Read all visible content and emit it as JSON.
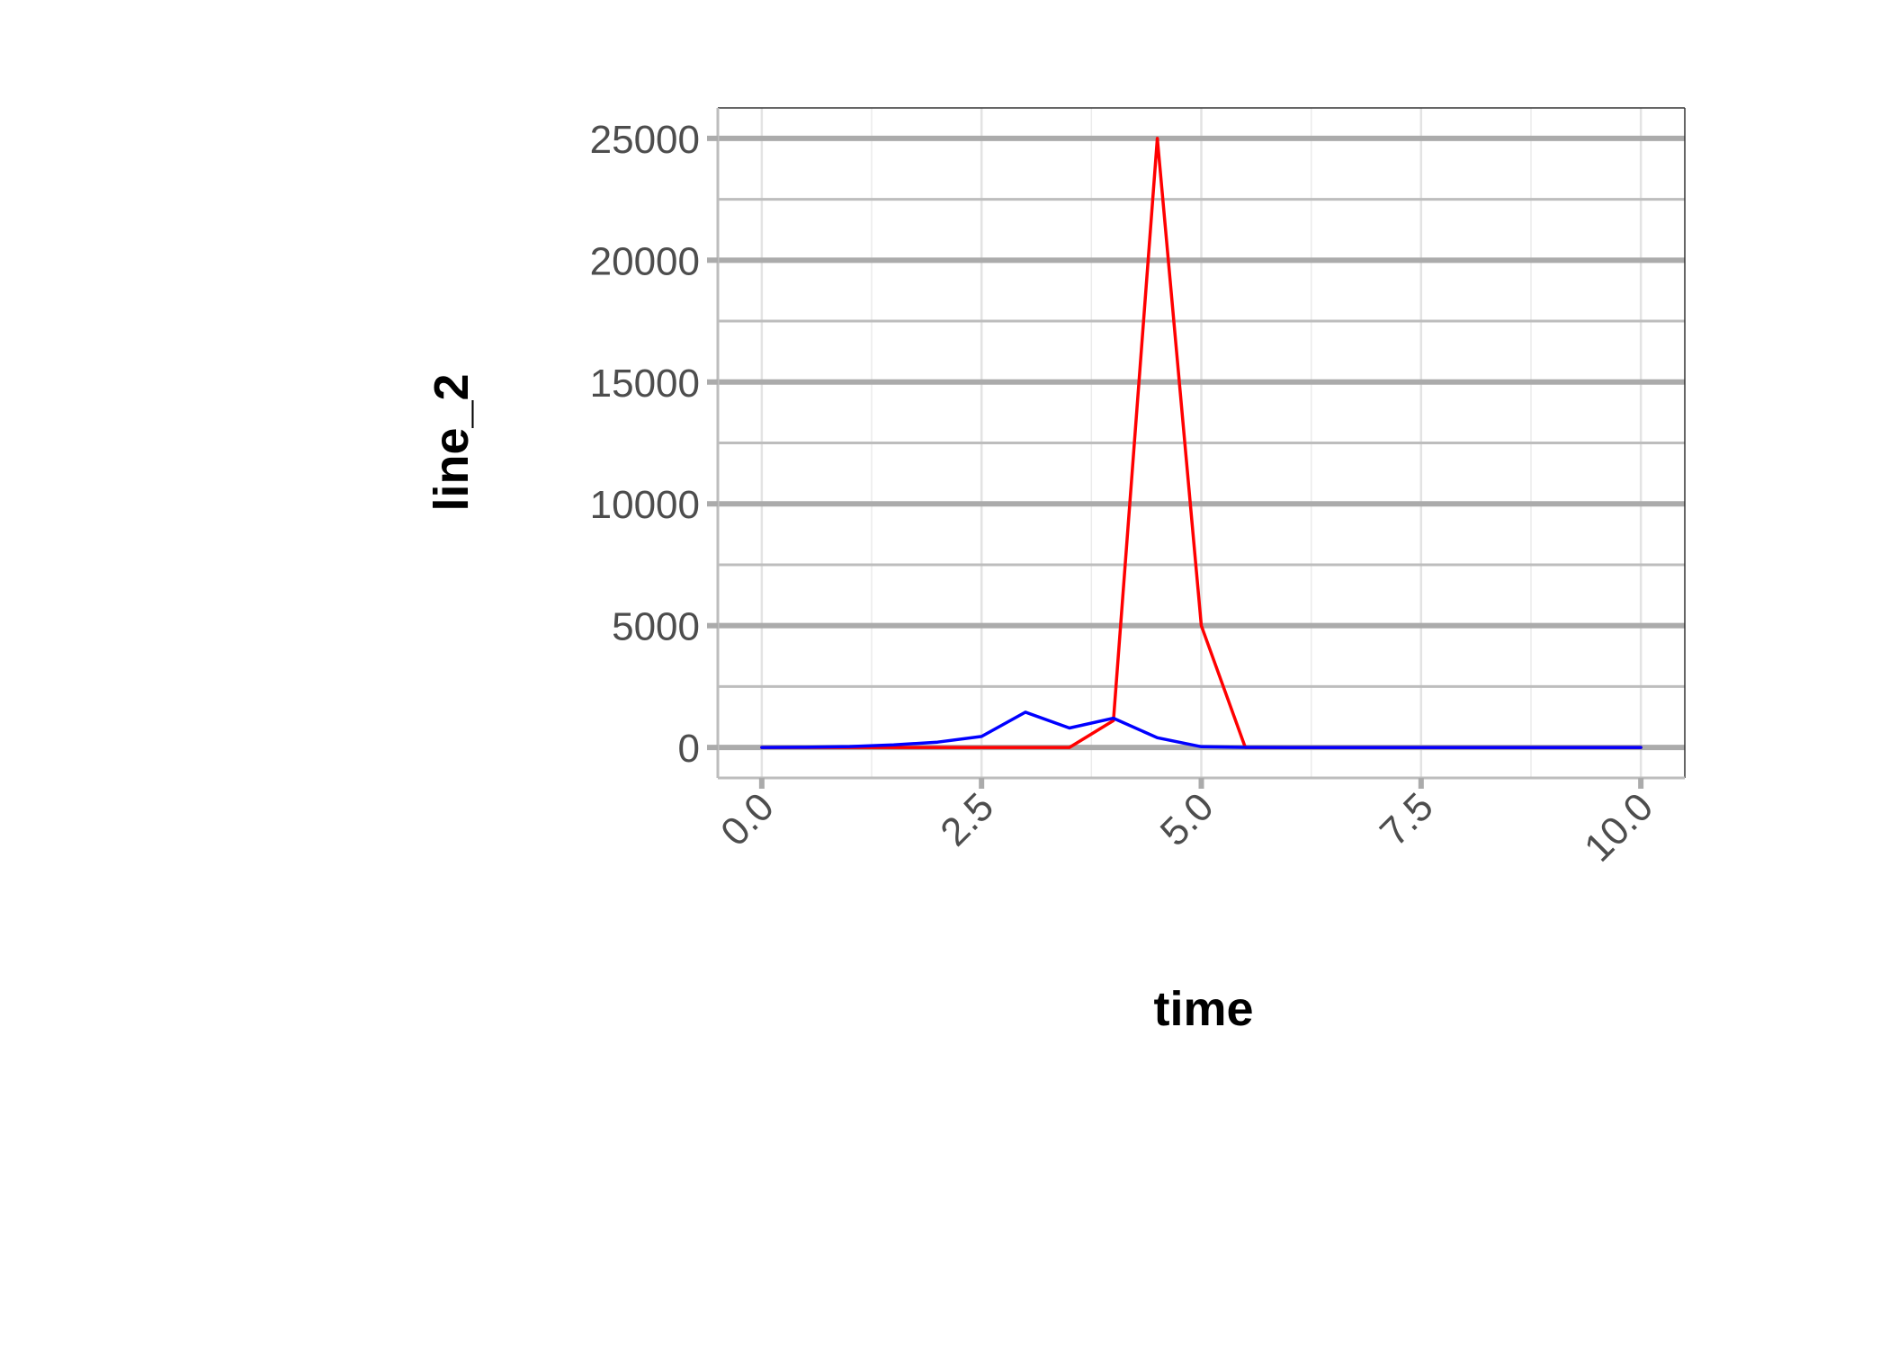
{
  "chart_data": {
    "type": "line",
    "xlabel": "time",
    "ylabel": "line_2",
    "xlim": [
      -0.5,
      10.5
    ],
    "ylim": [
      -1250,
      26250
    ],
    "x_ticks": [
      0,
      2.5,
      5,
      7.5,
      10
    ],
    "x_tick_labels": [
      "0.0",
      "2.5",
      "5.0",
      "7.5",
      "10.0"
    ],
    "y_ticks": [
      0,
      5000,
      10000,
      15000,
      20000,
      25000
    ],
    "y_tick_labels": [
      "0",
      "5000",
      "10000",
      "15000",
      "20000",
      "25000"
    ],
    "grid": true,
    "legend": "none",
    "series": [
      {
        "color": "#ff0000",
        "x": [
          0,
          0.5,
          1,
          1.5,
          2,
          2.5,
          3,
          3.5,
          4,
          4.5,
          5,
          5.5,
          6,
          6.5,
          7,
          7.5,
          8,
          8.5,
          9,
          9.5,
          10
        ],
        "y": [
          0,
          0,
          0,
          0,
          0,
          0,
          0,
          0,
          1100,
          25000,
          5000,
          0,
          0,
          0,
          0,
          0,
          0,
          0,
          0,
          0,
          0
        ]
      },
      {
        "color": "#0000ff",
        "x": [
          0,
          0.5,
          1,
          1.5,
          2,
          2.5,
          3,
          3.5,
          4,
          4.5,
          5,
          5.5,
          6,
          6.5,
          7,
          7.5,
          8,
          8.5,
          9,
          9.5,
          10
        ],
        "y": [
          0,
          10,
          40,
          110,
          220,
          450,
          1450,
          800,
          1200,
          400,
          30,
          5,
          0,
          0,
          0,
          0,
          0,
          0,
          0,
          0,
          0
        ]
      }
    ]
  }
}
